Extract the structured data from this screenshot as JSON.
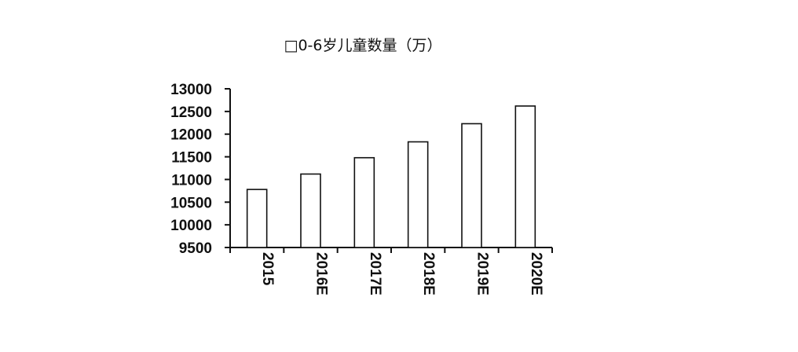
{
  "chart_data": {
    "type": "bar",
    "title": "□0-6岁儿童数量（万）",
    "categories": [
      "2015",
      "2016E",
      "2017E",
      "2018E",
      "2019E",
      "2020E"
    ],
    "values": [
      10780,
      11120,
      11480,
      11830,
      12230,
      12620
    ],
    "ylim": [
      9500,
      13000
    ],
    "yticks": [
      9500,
      10000,
      10500,
      11000,
      11500,
      12000,
      12500,
      13000
    ],
    "xlabel": "",
    "ylabel": "",
    "grid": false,
    "legend": "none"
  }
}
